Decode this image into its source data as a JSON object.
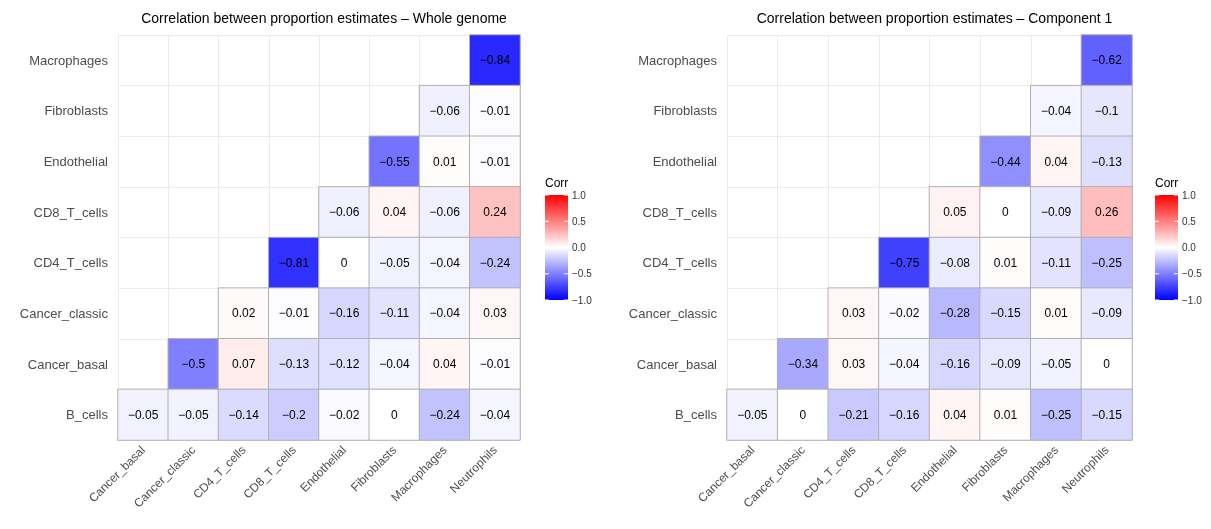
{
  "chart_data": [
    {
      "type": "heatmap",
      "title": "Correlation between proportion estimates – Whole genome",
      "clabel": "Corr",
      "categories": [
        "Cancer_basal",
        "Cancer_classic",
        "CD4_T_cells",
        "CD8_T_cells",
        "Endothelial",
        "Fibroblasts",
        "Macrophages",
        "Neutrophils"
      ],
      "y_categories": [
        "Macrophages",
        "Fibroblasts",
        "Endothelial",
        "CD8_T_cells",
        "CD4_T_cells",
        "Cancer_classic",
        "Cancer_basal",
        "B_cells"
      ],
      "cells": [
        [
          null,
          null,
          null,
          null,
          null,
          null,
          null,
          -0.84
        ],
        [
          null,
          null,
          null,
          null,
          null,
          null,
          -0.06,
          -0.01
        ],
        [
          null,
          null,
          null,
          null,
          null,
          -0.55,
          0.01,
          -0.01
        ],
        [
          null,
          null,
          null,
          null,
          -0.06,
          0.04,
          -0.06,
          0.24
        ],
        [
          null,
          null,
          null,
          -0.81,
          0,
          -0.05,
          -0.04,
          -0.24
        ],
        [
          null,
          null,
          0.02,
          -0.01,
          -0.16,
          -0.11,
          -0.04,
          0.03
        ],
        [
          null,
          -0.5,
          0.07,
          -0.13,
          -0.12,
          -0.04,
          0.04,
          -0.01
        ],
        [
          -0.05,
          -0.05,
          -0.14,
          -0.2,
          -0.02,
          0,
          -0.24,
          -0.04
        ]
      ],
      "clim": [
        -1,
        1
      ],
      "cticks": [
        {
          "value": -1,
          "label": "−1.0"
        },
        {
          "value": -0.5,
          "label": "−0.5"
        },
        {
          "value": 0,
          "label": "0.0"
        },
        {
          "value": 0.5,
          "label": "0.5"
        },
        {
          "value": 1,
          "label": "1.0"
        }
      ],
      "data_labels": true,
      "grid": true
    },
    {
      "type": "heatmap",
      "title": "Correlation between proportion estimates – Component 1",
      "clabel": "Corr",
      "categories": [
        "Cancer_basal",
        "Cancer_classic",
        "CD4_T_cells",
        "CD8_T_cells",
        "Endothelial",
        "Fibroblasts",
        "Macrophages",
        "Neutrophils"
      ],
      "y_categories": [
        "Macrophages",
        "Fibroblasts",
        "Endothelial",
        "CD8_T_cells",
        "CD4_T_cells",
        "Cancer_classic",
        "Cancer_basal",
        "B_cells"
      ],
      "cells": [
        [
          null,
          null,
          null,
          null,
          null,
          null,
          null,
          -0.62
        ],
        [
          null,
          null,
          null,
          null,
          null,
          null,
          -0.04,
          -0.1
        ],
        [
          null,
          null,
          null,
          null,
          null,
          -0.44,
          0.04,
          -0.13
        ],
        [
          null,
          null,
          null,
          null,
          0.05,
          0,
          -0.09,
          0.26
        ],
        [
          null,
          null,
          null,
          -0.75,
          -0.08,
          0.01,
          -0.11,
          -0.25
        ],
        [
          null,
          null,
          0.03,
          -0.02,
          -0.28,
          -0.15,
          0.01,
          -0.09
        ],
        [
          null,
          -0.34,
          0.03,
          -0.04,
          -0.16,
          -0.09,
          -0.05,
          0
        ],
        [
          -0.05,
          0,
          -0.21,
          -0.16,
          0.04,
          0.01,
          -0.25,
          -0.15
        ]
      ],
      "clim": [
        -1,
        1
      ],
      "cticks": [
        {
          "value": -1,
          "label": "−1.0"
        },
        {
          "value": -0.5,
          "label": "−0.5"
        },
        {
          "value": 0,
          "label": "0.0"
        },
        {
          "value": 0.5,
          "label": "0.5"
        },
        {
          "value": 1,
          "label": "1.0"
        }
      ],
      "data_labels": true,
      "grid": true
    }
  ]
}
